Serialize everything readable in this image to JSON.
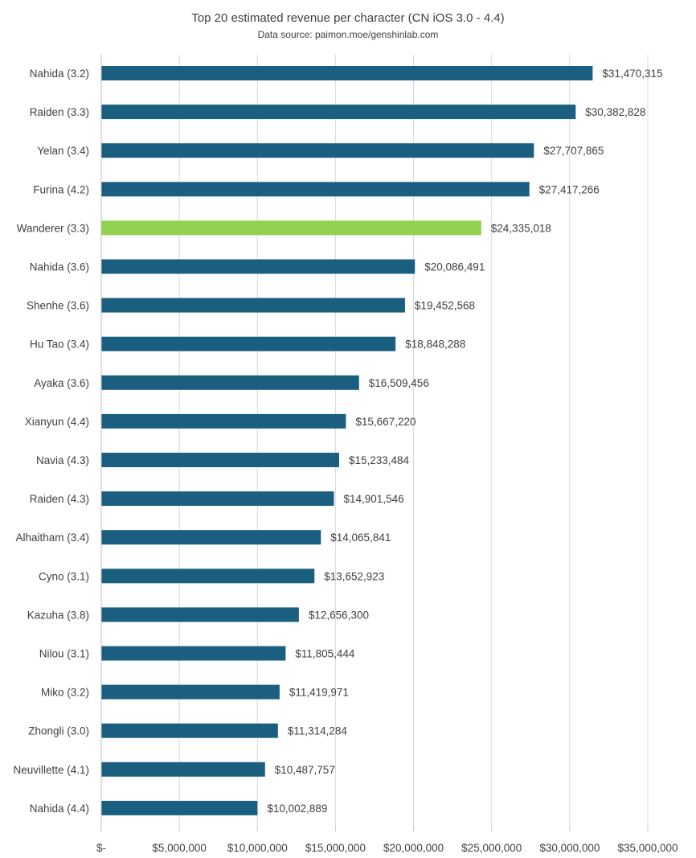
{
  "chart_data": {
    "type": "bar",
    "orientation": "horizontal",
    "title": "Top 20 estimated revenue per character (CN iOS 3.0 - 4.4)",
    "subtitle": "Data source: paimon.moe/genshinlab.com",
    "categories": [
      "Nahida (3.2)",
      "Raiden (3.3)",
      "Yelan (3.4)",
      "Furina (4.2)",
      "Wanderer (3.3)",
      "Nahida (3.6)",
      "Shenhe (3.6)",
      "Hu Tao (3.4)",
      "Ayaka (3.6)",
      "Xianyun (4.4)",
      "Navia (4.3)",
      "Raiden (4.3)",
      "Alhaitham (3.4)",
      "Cyno (3.1)",
      "Kazuha (3.8)",
      "Nilou (3.1)",
      "Miko (3.2)",
      "Zhongli (3.0)",
      "Neuvillette (4.1)",
      "Nahida (4.4)"
    ],
    "values": [
      31470315,
      30382828,
      27707865,
      27417266,
      24335018,
      20086491,
      19452568,
      18848288,
      16509456,
      15667220,
      15233484,
      14901546,
      14065841,
      13652923,
      12656300,
      11805444,
      11419971,
      11314284,
      10487757,
      10002889
    ],
    "value_labels": [
      "$31,470,315",
      "$30,382,828",
      "$27,707,865",
      "$27,417,266",
      "$24,335,018",
      "$20,086,491",
      "$19,452,568",
      "$18,848,288",
      "$16,509,456",
      "$15,667,220",
      "$15,233,484",
      "$14,901,546",
      "$14,065,841",
      "$13,652,923",
      "$12,656,300",
      "$11,805,444",
      "$11,419,971",
      "$11,314,284",
      "$10,487,757",
      "$10,002,889"
    ],
    "x_ticks": [
      0,
      5000000,
      10000000,
      15000000,
      20000000,
      25000000,
      30000000,
      35000000
    ],
    "x_tick_labels": [
      "$-",
      "$5,000,000",
      "$10,000,000",
      "$15,000,000",
      "$20,000,000",
      "$25,000,000",
      "$30,000,000",
      "$35,000,000"
    ],
    "xlim": [
      0,
      35000000
    ],
    "xlabel": "",
    "ylabel": "",
    "grid": "vertical",
    "legend": "none",
    "highlight_index": 4,
    "colors": {
      "bar": "#1b5f80",
      "highlight": "#92d050",
      "grid": "#d9d9d9",
      "axis": "#bfbfbf",
      "text": "#404040"
    }
  }
}
